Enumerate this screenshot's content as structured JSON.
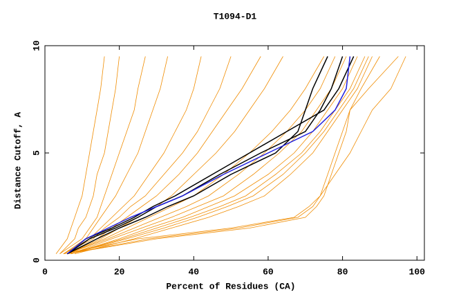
{
  "chart_data": {
    "type": "line",
    "title": "T1094-D1",
    "x_label": "Percent of Residues (CA)",
    "y_label": "Distance Cutoff, A",
    "xlim": [
      0,
      102
    ],
    "ylim": [
      0,
      10
    ],
    "xticks": [
      0,
      20,
      40,
      60,
      80,
      100
    ],
    "yticks": [
      0,
      5,
      10
    ],
    "y": [
      0.3,
      1,
      1.5,
      2,
      2.5,
      3,
      4,
      5,
      6,
      7,
      8,
      9.5
    ],
    "series": [
      {
        "color": "#f08c00",
        "x": [
          3,
          6,
          7,
          8,
          9,
          10,
          11,
          12,
          13,
          14,
          15,
          16
        ]
      },
      {
        "color": "#f08c00",
        "x": [
          4,
          8,
          9,
          11,
          12,
          13,
          14,
          16,
          17,
          18,
          19,
          20
        ]
      },
      {
        "color": "#f08c00",
        "x": [
          4,
          10,
          12,
          14,
          15,
          16,
          18,
          20,
          22,
          24,
          25,
          27
        ]
      },
      {
        "color": "#f08c00",
        "x": [
          5,
          11,
          13,
          15,
          17,
          19,
          22,
          25,
          27,
          29,
          31,
          33
        ]
      },
      {
        "color": "#f08c00",
        "x": [
          5,
          12,
          15,
          18,
          21,
          24,
          28,
          32,
          35,
          38,
          40,
          42
        ]
      },
      {
        "color": "#f08c00",
        "x": [
          5,
          13,
          16,
          20,
          23,
          27,
          32,
          37,
          41,
          44,
          47,
          50
        ]
      },
      {
        "color": "#f08c00",
        "x": [
          6,
          14,
          18,
          22,
          26,
          30,
          36,
          41,
          45,
          49,
          53,
          58
        ]
      },
      {
        "color": "#f08c00",
        "x": [
          6,
          15,
          20,
          25,
          30,
          34,
          40,
          46,
          51,
          55,
          59,
          64
        ]
      },
      {
        "color": "#f08c00",
        "x": [
          6,
          16,
          22,
          28,
          34,
          40,
          48,
          55,
          61,
          66,
          70,
          75
        ]
      },
      {
        "color": "#f08c00",
        "x": [
          6,
          17,
          24,
          31,
          38,
          44,
          52,
          59,
          65,
          70,
          74,
          78
        ]
      },
      {
        "color": "#f08c00",
        "x": [
          7,
          18,
          26,
          34,
          41,
          48,
          56,
          63,
          69,
          73,
          77,
          81
        ]
      },
      {
        "color": "#f08c00",
        "x": [
          7,
          20,
          28,
          37,
          44,
          51,
          60,
          67,
          72,
          76,
          80,
          84
        ]
      },
      {
        "color": "#f08c00",
        "x": [
          7,
          21,
          30,
          39,
          47,
          54,
          62,
          69,
          74,
          78,
          82,
          86
        ]
      },
      {
        "color": "#f08c00",
        "x": [
          7,
          22,
          32,
          41,
          49,
          56,
          64,
          70,
          75,
          79,
          83,
          87
        ]
      },
      {
        "color": "#f08c00",
        "x": [
          8,
          24,
          34,
          44,
          52,
          59,
          66,
          72,
          76,
          80,
          84,
          88
        ]
      },
      {
        "color": "#f08c00",
        "x": [
          6,
          30,
          55,
          70,
          73,
          75,
          77,
          79,
          81,
          82,
          85,
          90
        ]
      },
      {
        "color": "#f08c00",
        "x": [
          6,
          28,
          52,
          68,
          72,
          74,
          76,
          78,
          80,
          82,
          87,
          95
        ]
      },
      {
        "color": "#f08c00",
        "x": [
          5,
          25,
          50,
          67,
          71,
          74,
          78,
          82,
          85,
          88,
          93,
          97
        ]
      },
      {
        "color": "#000000",
        "x": [
          6,
          14,
          20,
          27,
          33,
          40,
          50,
          62,
          68,
          70,
          72,
          76
        ]
      },
      {
        "color": "#000000",
        "x": [
          6,
          12,
          19,
          25,
          30,
          37,
          47,
          58,
          70,
          74,
          77,
          80
        ]
      },
      {
        "color": "#000000",
        "x": [
          6,
          11,
          18,
          24,
          29,
          35,
          45,
          55,
          65,
          75,
          79,
          83
        ]
      },
      {
        "color": "#2020e0",
        "x": [
          6,
          11,
          17,
          23,
          30,
          37,
          48,
          60,
          72,
          78,
          81,
          82
        ]
      }
    ]
  }
}
